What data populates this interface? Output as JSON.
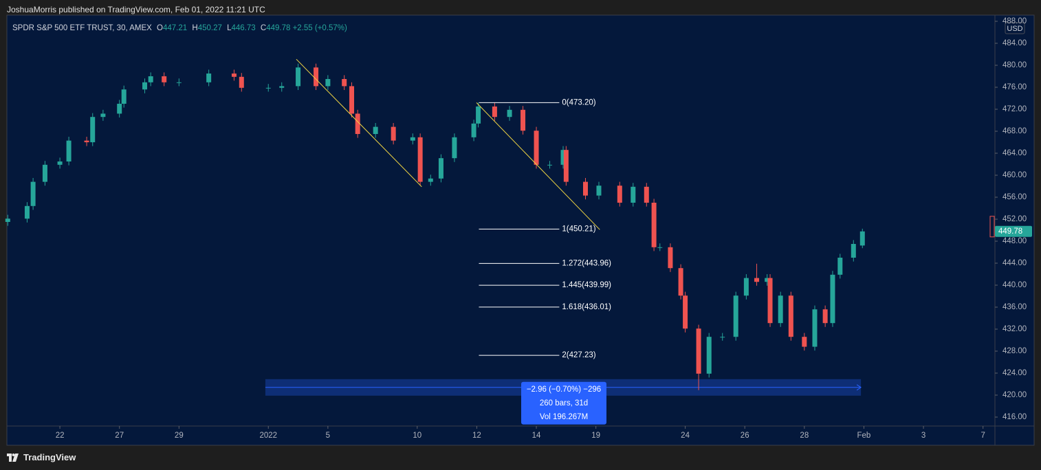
{
  "header": {
    "publisher": "JoshuaMorris published on TradingView.com, Feb 01, 2022 11:21 UTC",
    "brand": "TradingView"
  },
  "chart_data": {
    "type": "candlestick",
    "title": "SPDR S&P 500 ETF TRUST, 30, AMEX",
    "ohlc_labels": [
      "O",
      "H",
      "L",
      "C"
    ],
    "change": "+2.55 (+0.57%)",
    "currency": "USD",
    "up_color": "#26a69a",
    "down_color": "#ef5350",
    "grid": false,
    "xlim": [
      -1.78,
      31.4
    ],
    "xticks": [
      {
        "value": 0,
        "label": "22"
      },
      {
        "value": 2,
        "label": "27"
      },
      {
        "value": 4,
        "label": "29"
      },
      {
        "value": 7,
        "label": "2022"
      },
      {
        "value": 9,
        "label": "5"
      },
      {
        "value": 12,
        "label": "10"
      },
      {
        "value": 14,
        "label": "12"
      },
      {
        "value": 16,
        "label": "14"
      },
      {
        "value": 18,
        "label": "19"
      },
      {
        "value": 21,
        "label": "24"
      },
      {
        "value": 23,
        "label": "26"
      },
      {
        "value": 25,
        "label": "28"
      },
      {
        "value": 27,
        "label": "Feb"
      },
      {
        "value": 29,
        "label": "3"
      },
      {
        "value": 31,
        "label": "7"
      }
    ],
    "ylim": [
      414.375,
      489.125
    ],
    "yticks": [
      {
        "value": 416,
        "label": "416.00"
      },
      {
        "value": 420,
        "label": "420.00"
      },
      {
        "value": 424,
        "label": "424.00"
      },
      {
        "value": 428,
        "label": "428.00"
      },
      {
        "value": 432,
        "label": "432.00"
      },
      {
        "value": 436,
        "label": "436.00"
      },
      {
        "value": 440,
        "label": "440.00"
      },
      {
        "value": 444,
        "label": "444.00"
      },
      {
        "value": 448,
        "label": "448.00"
      },
      {
        "value": 452,
        "label": "452.00"
      },
      {
        "value": 456,
        "label": "456.00"
      },
      {
        "value": 460,
        "label": "460.00"
      },
      {
        "value": 464,
        "label": "464.00"
      },
      {
        "value": 468,
        "label": "468.00"
      },
      {
        "value": 472,
        "label": "472.00"
      },
      {
        "value": 476,
        "label": "476.00"
      },
      {
        "value": 480,
        "label": "480.00"
      },
      {
        "value": 484,
        "label": "484.00"
      },
      {
        "value": 488,
        "label": "488.00"
      }
    ],
    "x": [
      -1.75,
      -1.1,
      -0.9,
      -0.5,
      0,
      0.3,
      0.9,
      1.1,
      1.45,
      2,
      2.15,
      2.85,
      3.05,
      3.5,
      4,
      5,
      5.85,
      6.1,
      7,
      7.45,
      8,
      8.6,
      9,
      9.55,
      9.8,
      10,
      10.6,
      11.2,
      11.85,
      12.1,
      12.45,
      12.8,
      13.25,
      13.9,
      14.05,
      14.6,
      15.1,
      15.55,
      16,
      16.45,
      16.9,
      17,
      17.65,
      18.1,
      18.8,
      19.25,
      19.7,
      19.95,
      20.15,
      20.5,
      20.85,
      21,
      21.45,
      21.8,
      22.25,
      22.7,
      23.05,
      23.4,
      23.75,
      23.85,
      24.2,
      24.55,
      25,
      25.35,
      25.7,
      25.95,
      26.2,
      26.65,
      26.95
    ],
    "open": [
      451.5,
      452.1,
      454.4,
      458.8,
      461.9,
      462.5,
      466.3,
      466,
      470.6,
      471.2,
      473,
      475.6,
      476.9,
      478,
      476.9,
      476.9,
      478.5,
      477.9,
      475.9,
      475.9,
      476.2,
      479.6,
      476.2,
      477.5,
      476.2,
      471.2,
      467.5,
      468.8,
      466.3,
      466.9,
      458.8,
      459.4,
      463.1,
      466.9,
      469.4,
      472.5,
      470.6,
      471.9,
      468.1,
      461.9,
      461.9,
      464.6,
      458.8,
      456.3,
      458.1,
      455,
      457.9,
      455,
      446.9,
      446.9,
      443.1,
      438.1,
      432.1,
      423.9,
      430.6,
      430.6,
      438.1,
      441.3,
      440.6,
      441.3,
      433.1,
      438.1,
      430.6,
      428.8,
      435.6,
      433.1,
      441.9,
      445,
      447.21
    ],
    "high": [
      452.8,
      455.1,
      459.5,
      462.6,
      463.2,
      467,
      467,
      471.3,
      471.9,
      473.7,
      476.3,
      477.6,
      478.7,
      478.7,
      477.6,
      479.2,
      479.2,
      478.6,
      476.6,
      476.9,
      480.3,
      480.3,
      478.2,
      478.2,
      476.9,
      471.9,
      469.5,
      469.5,
      467.6,
      467.6,
      460.1,
      463.8,
      467.6,
      470.1,
      473.2,
      473.2,
      472.6,
      472.6,
      468.8,
      462.6,
      465.3,
      465.3,
      459.5,
      458.8,
      458.8,
      458.6,
      458.6,
      455.7,
      447.6,
      447.6,
      443.8,
      438.8,
      432.8,
      431.3,
      431.3,
      438.8,
      442,
      443.9,
      442,
      442,
      438.8,
      438.8,
      431.3,
      436.3,
      436.3,
      442.6,
      445.7,
      448.2,
      450.27
    ],
    "low": [
      450.8,
      451.4,
      453.7,
      458.1,
      461.2,
      461.8,
      465.3,
      465.3,
      469.9,
      470.5,
      472.3,
      474.9,
      476.2,
      476.2,
      476.2,
      476.2,
      477.2,
      475.2,
      475.2,
      475.2,
      475.5,
      475.5,
      475.5,
      475.5,
      470.5,
      466.8,
      466.8,
      465.6,
      465.6,
      458.1,
      458.1,
      458.7,
      462.4,
      466.2,
      468.7,
      469.9,
      469.9,
      467.4,
      461.2,
      461.2,
      461.2,
      458.1,
      455.6,
      455.6,
      454.3,
      454.3,
      454.3,
      446.2,
      446.2,
      442.4,
      437.4,
      431.4,
      420.9,
      423.2,
      429.9,
      429.9,
      437.4,
      439.9,
      439.9,
      432.4,
      432.4,
      429.9,
      428.1,
      428.1,
      432.4,
      432.4,
      441.2,
      444.3,
      446.73
    ],
    "close": [
      452.1,
      454.4,
      458.8,
      461.9,
      462.5,
      466.3,
      466,
      470.6,
      471.2,
      473,
      475.6,
      476.9,
      478,
      476.9,
      476.9,
      478.5,
      477.9,
      475.9,
      475.9,
      476.2,
      479.6,
      476.2,
      477.5,
      476.2,
      471.2,
      467.5,
      468.8,
      466.3,
      466.9,
      458.8,
      459.4,
      463.1,
      466.9,
      469.4,
      472.5,
      470.6,
      471.9,
      468.1,
      461.9,
      461.9,
      464.6,
      458.8,
      456.3,
      458.1,
      455,
      457.9,
      455,
      446.9,
      446.9,
      443.1,
      438.1,
      432.1,
      423.9,
      430.6,
      430.6,
      438.1,
      441.3,
      440.6,
      441.3,
      433.1,
      438.1,
      430.6,
      428.8,
      435.6,
      433.1,
      441.9,
      445,
      447.5,
      449.78
    ],
    "trendlines": [
      {
        "x": [
          7.94,
          12.15
        ],
        "y": [
          481.1,
          457.9
        ],
        "color": "#f0d543"
      },
      {
        "x": [
          13.99,
          18.13
        ],
        "y": [
          473.2,
          450.1
        ],
        "color": "#f0d543"
      }
    ],
    "fib": {
      "x_range": [
        14.07,
        16.77
      ],
      "levels": [
        {
          "value": 473.2,
          "label": "0(473.20)"
        },
        {
          "value": 450.21,
          "label": "1(450.21)"
        },
        {
          "value": 443.96,
          "label": "1.272(443.96)"
        },
        {
          "value": 439.99,
          "label": "1.445(439.99)"
        },
        {
          "value": 436.01,
          "label": "1.618(436.01)"
        },
        {
          "value": 427.23,
          "label": "2(427.23)"
        }
      ]
    },
    "measure": {
      "x_range": [
        6.9,
        26.9
      ],
      "price_range": [
        422.9,
        419.9
      ],
      "lines": [
        "−2.96 (−0.70%) −296",
        "260 bars, 31d",
        "Vol 196.267M"
      ]
    }
  }
}
